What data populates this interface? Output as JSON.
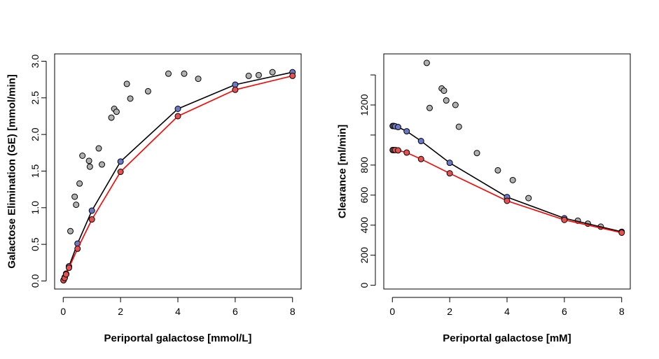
{
  "chart_data": [
    {
      "type": "scatter",
      "xlabel": "Periportal galactose [mmol/L]",
      "ylabel": "Galactose Elimination (GE) [mmol/min]",
      "xlim": [
        -0.3,
        8.3
      ],
      "ylim": [
        -0.11,
        3.1
      ],
      "xticks": [
        0,
        2,
        4,
        6,
        8
      ],
      "xtick_labels": [
        "0",
        "2",
        "4",
        "6",
        "8"
      ],
      "yticks": [
        0.0,
        0.5,
        1.0,
        1.5,
        2.0,
        2.5,
        3.0
      ],
      "ytick_labels": [
        "0.0",
        "0.5",
        "1.0",
        "1.5",
        "2.0",
        "2.5",
        "3.0"
      ],
      "grid": false,
      "series": [
        {
          "kind": "points",
          "color": "#b0b0b0",
          "x": [
            0.05,
            0.1,
            0.25,
            0.4,
            0.45,
            0.57,
            0.67,
            0.9,
            0.93,
            1.24,
            1.35,
            1.68,
            1.78,
            1.86,
            2.22,
            2.34,
            2.96,
            3.67,
            4.22,
            4.71,
            6.47,
            6.82,
            7.3
          ],
          "y": [
            0.04,
            0.09,
            0.68,
            1.15,
            1.04,
            1.33,
            1.71,
            1.64,
            1.56,
            1.81,
            1.59,
            2.23,
            2.35,
            2.31,
            2.69,
            2.49,
            2.59,
            2.83,
            2.83,
            2.76,
            2.8,
            2.81,
            2.85
          ]
        },
        {
          "kind": "line+points",
          "color": "#000000",
          "marker_color": "#6a78c8",
          "x": [
            0.01,
            0.05,
            0.1,
            0.2,
            0.5,
            1,
            2,
            4,
            6,
            8
          ],
          "y": [
            0.01,
            0.05,
            0.1,
            0.2,
            0.51,
            0.96,
            1.63,
            2.35,
            2.68,
            2.85
          ]
        },
        {
          "kind": "line+points",
          "color": "#ff0000",
          "marker_color": "#e85050",
          "x": [
            0.01,
            0.05,
            0.1,
            0.2,
            0.5,
            1,
            2,
            4,
            6,
            8
          ],
          "y": [
            0.01,
            0.04,
            0.09,
            0.18,
            0.44,
            0.84,
            1.49,
            2.25,
            2.61,
            2.8
          ]
        }
      ]
    },
    {
      "type": "scatter",
      "xlabel": "Periportal galactose [mM]",
      "ylabel": "Clearance [ml/min]",
      "xlim": [
        -0.3,
        8.3
      ],
      "ylim": [
        -25,
        1540
      ],
      "xticks": [
        0,
        2,
        4,
        6,
        8
      ],
      "xtick_labels": [
        "0",
        "2",
        "4",
        "6",
        "8"
      ],
      "yticks": [
        0,
        200,
        400,
        600,
        800,
        1200
      ],
      "ytick_labels": [
        "0",
        "200",
        "400",
        "600",
        "800",
        "1200"
      ],
      "yticks_extra_marks": [
        1000,
        1400
      ],
      "grid": false,
      "series": [
        {
          "kind": "points",
          "color": "#b0b0b0",
          "x": [
            1.2,
            1.3,
            1.72,
            1.8,
            1.88,
            2.2,
            2.32,
            2.95,
            3.68,
            4.2,
            4.75,
            6.47,
            6.82,
            7.27
          ],
          "y": [
            1480,
            1180,
            1310,
            1295,
            1230,
            1200,
            1055,
            880,
            765,
            700,
            580,
            430,
            410,
            390
          ]
        },
        {
          "kind": "line+points",
          "color": "#000000",
          "marker_color": "#6a78c8",
          "x": [
            0.01,
            0.05,
            0.1,
            0.2,
            0.5,
            1,
            2,
            4,
            6,
            8
          ],
          "y": [
            1060,
            1060,
            1058,
            1053,
            1025,
            960,
            815,
            587,
            446,
            356
          ]
        },
        {
          "kind": "line+points",
          "color": "#ff0000",
          "marker_color": "#e85050",
          "x": [
            0.01,
            0.05,
            0.1,
            0.2,
            0.5,
            1,
            2,
            4,
            6,
            8
          ],
          "y": [
            900,
            900,
            900,
            898,
            883,
            840,
            745,
            562,
            435,
            350
          ]
        }
      ]
    }
  ]
}
